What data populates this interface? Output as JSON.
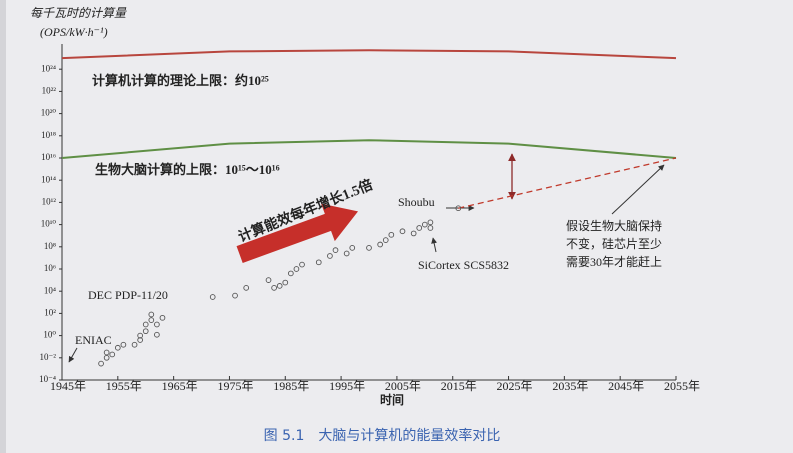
{
  "chart_data": {
    "type": "scatter",
    "ylabel": [
      "每千瓦时的计算量",
      "(OPS/kW·h⁻¹)"
    ],
    "xlabel": "时间",
    "xlim": [
      1945,
      2055
    ],
    "xticks": [
      {
        "value": 1945,
        "label": "1945年"
      },
      {
        "value": 1955,
        "label": "1955年"
      },
      {
        "value": 1965,
        "label": "1965年"
      },
      {
        "value": 1975,
        "label": "1975年"
      },
      {
        "value": 1985,
        "label": "1985年"
      },
      {
        "value": 1995,
        "label": "1995年"
      },
      {
        "value": 2005,
        "label": "2005年"
      },
      {
        "value": 2015,
        "label": "2015年"
      },
      {
        "value": 2025,
        "label": "2025年"
      },
      {
        "value": 2035,
        "label": "2035年"
      },
      {
        "value": 2045,
        "label": "2045年"
      },
      {
        "value": 2055,
        "label": "2055年"
      }
    ],
    "ylog": true,
    "ylim": [
      0.0001,
      1e+26
    ],
    "yticks": [
      {
        "value": 0.0001,
        "label": "10⁻⁴"
      },
      {
        "value": 0.01,
        "label": "10⁻²"
      },
      {
        "value": 1,
        "label": "10⁰"
      },
      {
        "value": 100,
        "label": "10²"
      },
      {
        "value": 10000,
        "label": "10⁴"
      },
      {
        "value": 1000000,
        "label": "10⁶"
      },
      {
        "value": 100000000.0,
        "label": "10⁸"
      },
      {
        "value": 10000000000.0,
        "label": "10¹⁰"
      },
      {
        "value": 1000000000000.0,
        "label": "10¹²"
      },
      {
        "value": 100000000000000.0,
        "label": "10¹⁴"
      },
      {
        "value": 1e+16,
        "label": "10¹⁶"
      },
      {
        "value": 1e+18,
        "label": "10¹⁸"
      },
      {
        "value": 1e+20,
        "label": "10²⁰"
      },
      {
        "value": 1e+22,
        "label": "10²²"
      },
      {
        "value": 1e+24,
        "label": "10²⁴"
      }
    ],
    "grid": false,
    "series": [
      {
        "kind": "line",
        "color": "#b8463e",
        "x": [
          1945,
          1975,
          2000,
          2025,
          2055
        ],
        "values": [
          1e+25,
          4e+25,
          5e+25,
          4e+25,
          1e+25
        ]
      },
      {
        "kind": "line",
        "color": "#5f8f45",
        "x": [
          1945,
          1975,
          2000,
          2025,
          2055
        ],
        "values": [
          1e+16,
          2e+17,
          4e+17,
          2e+17,
          1e+16
        ]
      },
      {
        "kind": "line",
        "color": "#c0392b",
        "dashed": true,
        "x": [
          2016,
          2055
        ],
        "values": [
          300000000000.0,
          1e+16
        ]
      },
      {
        "kind": "scatter",
        "color": "#555555",
        "x": [
          1952,
          1953,
          1953,
          1954,
          1955,
          1956,
          1958,
          1959,
          1959,
          1960,
          1960,
          1961,
          1961,
          1962,
          1962,
          1963,
          1972,
          1976,
          1978,
          1982,
          1983,
          1984,
          1985,
          1986,
          1987,
          1988,
          1991,
          1993,
          1994,
          1996,
          1997,
          2000,
          2002,
          2003,
          2004,
          2006,
          2008,
          2009,
          2010,
          2011,
          2011,
          2016
        ],
        "values": [
          0.003,
          0.01,
          0.03,
          0.02,
          0.08,
          0.15,
          0.15,
          0.4,
          1,
          2.5,
          10,
          25,
          80,
          10,
          1.2,
          40,
          3000,
          4000,
          20000,
          100000,
          20000,
          30000,
          60000,
          400000,
          1000000.0,
          2500000.0,
          4000000.0,
          15000000.0,
          50000000.0,
          25000000.0,
          80000000.0,
          80000000.0,
          160000000.0,
          400000000.0,
          1200000000.0,
          2500000000.0,
          1600000000.0,
          5000000000.0,
          10000000000.0,
          5000000000.0,
          16000000000.0,
          300000000000.0
        ]
      }
    ],
    "annotations": [
      "计算机计算的理论上限：约10²⁵",
      "生物大脑计算的上限：10¹⁵～10¹⁶",
      "计算能效每年增长1.5倍",
      "Shoubu",
      "SiCortex SCS5832",
      "DEC PDP-11/20",
      "ENIAC",
      "假设生物大脑保持",
      "不变，硅芯片至少",
      "需要30年才能赶上"
    ]
  },
  "caption": "图 5.1　大脑与计算机的能量效率对比"
}
